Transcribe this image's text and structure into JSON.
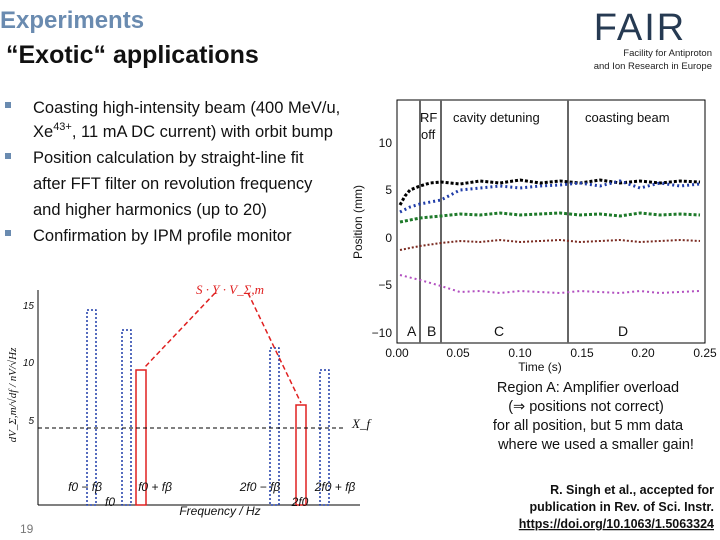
{
  "header": {
    "title": "Experiments",
    "subtitle": "“Exotic“ applications",
    "logo": "FAIR",
    "logo_caption": [
      "Facility for Antiproton",
      "and Ion Research in Europe"
    ]
  },
  "bullets": [
    {
      "lines": [
        [
          "Coasting high-intensity beam (400 MeV/u,"
        ],
        [
          "Xe",
          "43+",
          ", 11 mA DC current) with orbit bump"
        ]
      ]
    },
    {
      "lines": [
        [
          "Position calculation by straight-line fit"
        ],
        [
          "after FFT filter on revolution frequency"
        ],
        [
          "and higher harmonics (up to 20)"
        ]
      ]
    },
    {
      "lines": [
        [
          "Confirmation by IPM profile monitor"
        ]
      ]
    }
  ],
  "position_plot": {
    "phase_labels": [
      "RF",
      "off",
      "cavity detuning",
      "coasting beam"
    ],
    "region_labels": [
      "A",
      "B",
      "C",
      "D"
    ],
    "y_label": "Position (mm)",
    "y_ticks": [
      "10",
      "5",
      "0",
      "−5",
      "−10"
    ],
    "x_label": "Time (s)",
    "x_ticks": [
      "0.00",
      "0.05",
      "0.10",
      "0.15",
      "0.20",
      "0.25"
    ]
  },
  "spectrum_diagram": {
    "y_ticks": [
      "15",
      "10",
      "5"
    ],
    "y_label": "dV_Σ,m/√df / nV/√Hz",
    "signal_label": "S · Y · V_Σ,m",
    "noise_label": "X_f",
    "x_labels_top": [
      "f0 − fβ",
      "f0 + fβ",
      "2f0 − fβ",
      "2f0 + fβ"
    ],
    "x_labels_bottom": [
      "f0",
      "2f0"
    ],
    "x_label": "Frequency / Hz"
  },
  "region_note": [
    "Region A: Amplifier overload",
    "(⇒  positions not correct)",
    "for all position, but 5 mm data",
    "where we used a smaller gain!"
  ],
  "citation": [
    "R. Singh et al., accepted for",
    "publication in Rev. of Sci. Instr.",
    "https://doi.org/10.1063/1.5063324"
  ],
  "page_number": "19"
}
